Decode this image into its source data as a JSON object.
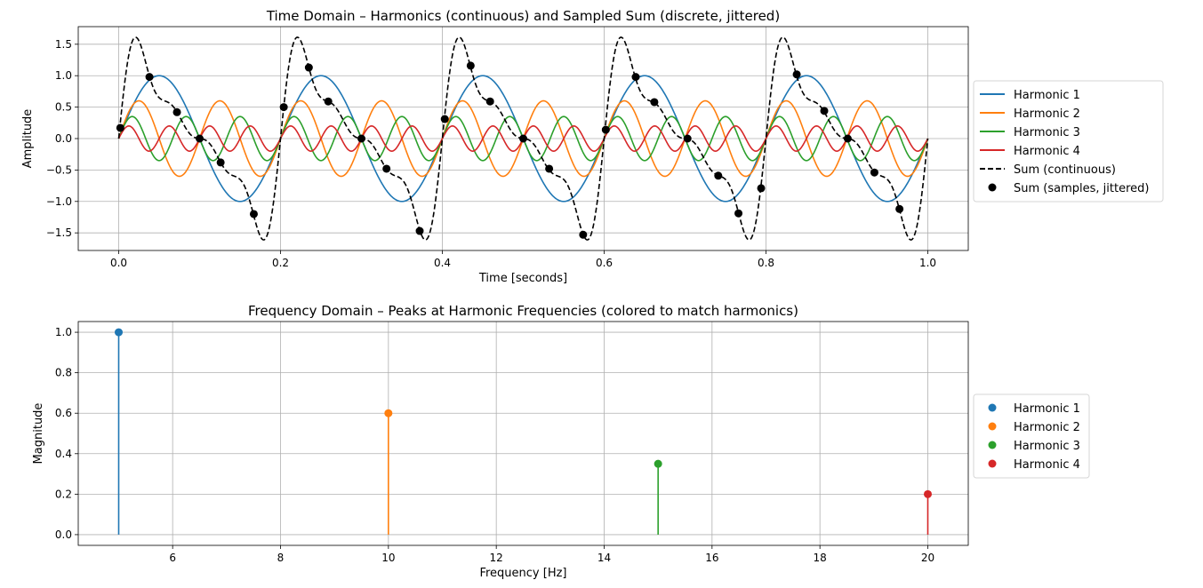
{
  "chart_data": [
    {
      "type": "line",
      "title": "Time Domain – Harmonics (continuous) and Sampled Sum (discrete, jittered)",
      "xlabel": "Time [seconds]",
      "ylabel": "Amplitude",
      "xlim": [
        -0.05,
        1.05
      ],
      "ylim": [
        -1.78,
        1.78
      ],
      "xticks": [
        "0.0",
        "0.2",
        "0.4",
        "0.6",
        "0.8",
        "1.0"
      ],
      "xtick_values": [
        0,
        0.2,
        0.4,
        0.6,
        0.8,
        1.0
      ],
      "yticks": [
        "−1.5",
        "−1.0",
        "−0.5",
        "0.0",
        "0.5",
        "1.0",
        "1.5"
      ],
      "ytick_values": [
        -1.5,
        -1,
        -0.5,
        0,
        0.5,
        1,
        1.5
      ],
      "grid": true,
      "legend_placement": "outside-right",
      "series": [
        {
          "name": "Harmonic 1",
          "frequency_hz": 5,
          "amplitude": 1.0,
          "color": "#1f77b4"
        },
        {
          "name": "Harmonic 2",
          "frequency_hz": 10,
          "amplitude": 0.6,
          "color": "#ff7f0e"
        },
        {
          "name": "Harmonic 3",
          "frequency_hz": 15,
          "amplitude": 0.35,
          "color": "#2ca02c"
        },
        {
          "name": "Harmonic 4",
          "frequency_hz": 20,
          "amplitude": 0.2,
          "color": "#d62728"
        }
      ],
      "sum_continuous": {
        "name": "Sum (continuous)",
        "color": "#000000",
        "style": "dashed"
      },
      "sum_samples": {
        "name": "Sum (samples, jittered)",
        "color": "#000000",
        "x": [
          0.002,
          0.038,
          0.072,
          0.1,
          0.126,
          0.167,
          0.204,
          0.235,
          0.259,
          0.3,
          0.331,
          0.372,
          0.403,
          0.435,
          0.459,
          0.5,
          0.532,
          0.574,
          0.602,
          0.639,
          0.662,
          0.703,
          0.741,
          0.766,
          0.794,
          0.838,
          0.872,
          0.901,
          0.934,
          0.965
        ],
        "y": [
          0.17,
          0.98,
          0.42,
          0.0,
          -0.38,
          -1.2,
          0.5,
          1.13,
          0.59,
          0.0,
          -0.48,
          -1.47,
          0.31,
          1.16,
          0.59,
          0.0,
          -0.48,
          -1.53,
          0.14,
          0.98,
          0.58,
          0.0,
          -0.59,
          -1.19,
          -0.79,
          1.02,
          0.44,
          0.0,
          -0.54,
          -1.12
        ]
      }
    },
    {
      "type": "stem",
      "title": "Frequency Domain – Peaks at Harmonic Frequencies (colored to match harmonics)",
      "xlabel": "Frequency [Hz]",
      "ylabel": "Magnitude",
      "xlim": [
        4.25,
        20.75
      ],
      "ylim": [
        -0.053,
        1.053
      ],
      "xticks": [
        "6",
        "8",
        "10",
        "12",
        "14",
        "16",
        "18",
        "20"
      ],
      "xtick_values": [
        6,
        8,
        10,
        12,
        14,
        16,
        18,
        20
      ],
      "yticks": [
        "0.0",
        "0.2",
        "0.4",
        "0.6",
        "0.8",
        "1.0"
      ],
      "ytick_values": [
        0,
        0.2,
        0.4,
        0.6,
        0.8,
        1.0
      ],
      "grid": true,
      "legend_placement": "outside-right",
      "series": [
        {
          "name": "Harmonic 1",
          "x": 5,
          "y": 1.0,
          "color": "#1f77b4"
        },
        {
          "name": "Harmonic 2",
          "x": 10,
          "y": 0.6,
          "color": "#ff7f0e"
        },
        {
          "name": "Harmonic 3",
          "x": 15,
          "y": 0.35,
          "color": "#2ca02c"
        },
        {
          "name": "Harmonic 4",
          "x": 20,
          "y": 0.2,
          "color": "#d62728"
        }
      ]
    }
  ]
}
